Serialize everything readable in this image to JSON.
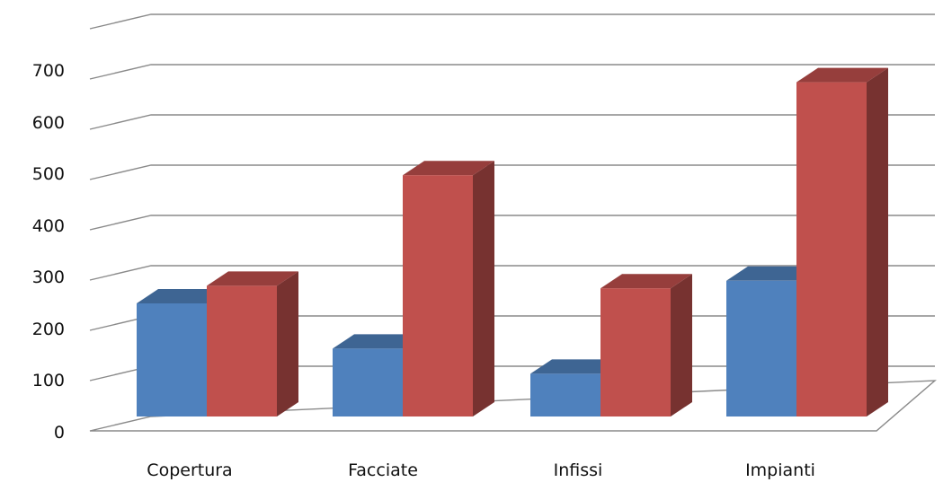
{
  "chart_data": {
    "type": "bar",
    "title": "",
    "xlabel": "",
    "ylabel": "",
    "ylim": [
      0,
      800
    ],
    "y_ticks": [
      "0",
      "100",
      "200",
      "300",
      "400",
      "500",
      "600",
      "700"
    ],
    "grid": true,
    "legend": "none",
    "categories": [
      "Copertura",
      "Facciate",
      "Infissi",
      "Impianti"
    ],
    "series": [
      {
        "values": [
          225,
          135,
          85,
          270
        ],
        "color": "#4f81bd"
      },
      {
        "values": [
          260,
          480,
          255,
          665
        ],
        "color": "#c0504d"
      }
    ]
  }
}
